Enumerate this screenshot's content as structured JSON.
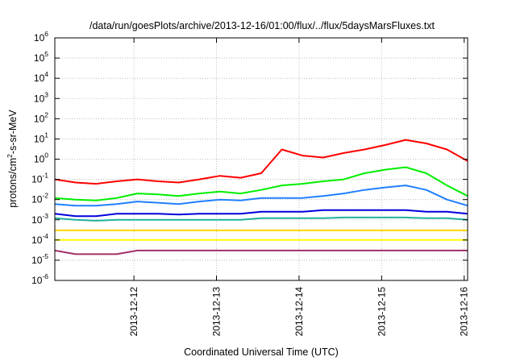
{
  "chart_data": {
    "type": "line",
    "title": "/data/run/goesPlots/archive/2013-12-16/01:00/flux/../flux/5daysMarsFluxes.txt",
    "xlabel": "Coordinated Universal Time (UTC)",
    "ylabel": {
      "pre": "protons/cm",
      "sup": "2",
      "post": "-s-sr-MeV"
    },
    "yscale": "log",
    "ylim": [
      1e-06,
      1000000.0
    ],
    "y_ticks": [
      {
        "base": "10",
        "exp": "-6",
        "value": 1e-06
      },
      {
        "base": "10",
        "exp": "-5",
        "value": 1e-05
      },
      {
        "base": "10",
        "exp": "-4",
        "value": 0.0001
      },
      {
        "base": "10",
        "exp": "-3",
        "value": 0.001
      },
      {
        "base": "10",
        "exp": "-2",
        "value": 0.01
      },
      {
        "base": "10",
        "exp": "-1",
        "value": 0.1
      },
      {
        "base": "10",
        "exp": "0",
        "value": 1
      },
      {
        "base": "10",
        "exp": "1",
        "value": 10
      },
      {
        "base": "10",
        "exp": "2",
        "value": 100
      },
      {
        "base": "10",
        "exp": "3",
        "value": 1000
      },
      {
        "base": "10",
        "exp": "4",
        "value": 10000
      },
      {
        "base": "10",
        "exp": "5",
        "value": 100000
      },
      {
        "base": "10",
        "exp": "6",
        "value": 1000000
      }
    ],
    "xlim": [
      "2013-12-11T01:00",
      "2013-12-16T01:00"
    ],
    "x_ticks": [
      "2013-12-12",
      "2013-12-13",
      "2013-12-14",
      "2013-12-15",
      "2013-12-16"
    ],
    "grid": true,
    "legend": "none",
    "x": [
      "2013-12-11T01:00",
      "2013-12-11T07:00",
      "2013-12-11T13:00",
      "2013-12-11T19:00",
      "2013-12-12T01:00",
      "2013-12-12T07:00",
      "2013-12-12T13:00",
      "2013-12-12T19:00",
      "2013-12-13T01:00",
      "2013-12-13T07:00",
      "2013-12-13T13:00",
      "2013-12-13T19:00",
      "2013-12-14T01:00",
      "2013-12-14T07:00",
      "2013-12-14T13:00",
      "2013-12-14T19:00",
      "2013-12-15T01:00",
      "2013-12-15T07:00",
      "2013-12-15T13:00",
      "2013-12-15T19:00",
      "2013-12-16T01:00"
    ],
    "series": [
      {
        "color": "#ff0000",
        "values": [
          0.1,
          0.07,
          0.06,
          0.08,
          0.1,
          0.08,
          0.07,
          0.1,
          0.15,
          0.12,
          0.2,
          3,
          1.5,
          1.2,
          2,
          3,
          5,
          9,
          6,
          3,
          0.8
        ]
      },
      {
        "color": "#00ee00",
        "values": [
          0.012,
          0.01,
          0.009,
          0.012,
          0.02,
          0.018,
          0.015,
          0.02,
          0.025,
          0.02,
          0.03,
          0.05,
          0.06,
          0.08,
          0.1,
          0.2,
          0.3,
          0.4,
          0.2,
          0.05,
          0.015
        ]
      },
      {
        "color": "#2080ff",
        "values": [
          0.006,
          0.005,
          0.005,
          0.006,
          0.008,
          0.007,
          0.006,
          0.008,
          0.01,
          0.009,
          0.012,
          0.012,
          0.012,
          0.015,
          0.02,
          0.03,
          0.04,
          0.05,
          0.03,
          0.01,
          0.005
        ]
      },
      {
        "color": "#0000dd",
        "values": [
          0.002,
          0.0015,
          0.0015,
          0.002,
          0.002,
          0.002,
          0.0018,
          0.002,
          0.002,
          0.002,
          0.0025,
          0.0025,
          0.0025,
          0.003,
          0.003,
          0.003,
          0.003,
          0.003,
          0.0025,
          0.0025,
          0.002
        ]
      },
      {
        "color": "#20b0a0",
        "values": [
          0.0012,
          0.001,
          0.0009,
          0.001,
          0.001,
          0.001,
          0.001,
          0.001,
          0.001,
          0.001,
          0.0012,
          0.0012,
          0.0012,
          0.0012,
          0.0013,
          0.0013,
          0.0013,
          0.0013,
          0.0012,
          0.0012,
          0.001
        ]
      },
      {
        "color": "#ffd700",
        "values": [
          0.0003,
          0.0003,
          0.0003,
          0.0003,
          0.0003,
          0.0003,
          0.0003,
          0.0003,
          0.0003,
          0.0003,
          0.0003,
          0.0003,
          0.0003,
          0.0003,
          0.0003,
          0.0003,
          0.0003,
          0.0003,
          0.0003,
          0.0003,
          0.0003
        ]
      },
      {
        "color": "#ffff00",
        "values": [
          0.0001,
          0.0001,
          0.0001,
          0.0001,
          0.0001,
          0.0001,
          0.0001,
          0.0001,
          0.0001,
          0.0001,
          0.0001,
          0.0001,
          0.0001,
          0.0001,
          0.0001,
          0.0001,
          0.0001,
          0.0001,
          0.0001,
          0.0001,
          0.0001
        ]
      },
      {
        "color": "#a0306a",
        "values": [
          3e-05,
          2e-05,
          2e-05,
          2e-05,
          3e-05,
          3e-05,
          3e-05,
          3e-05,
          3e-05,
          3e-05,
          3e-05,
          3e-05,
          3e-05,
          3e-05,
          3e-05,
          3e-05,
          3e-05,
          3e-05,
          3e-05,
          3e-05,
          3e-05
        ]
      }
    ]
  }
}
